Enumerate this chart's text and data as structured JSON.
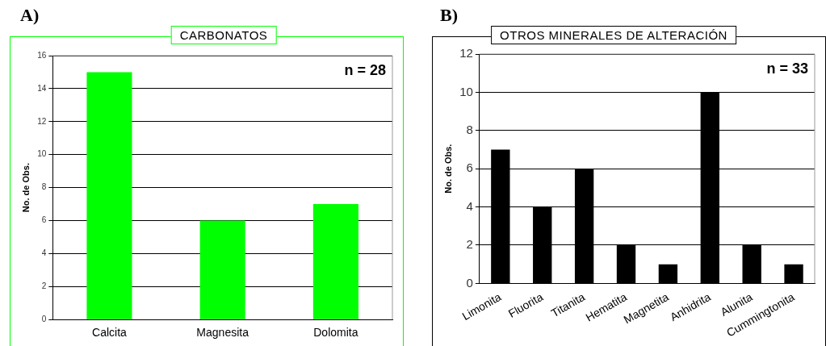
{
  "chart_data": [
    {
      "type": "bar",
      "title": "CARBONATOS",
      "ylabel": "No. de Obs.",
      "categories": [
        "Calcita",
        "Magnesita",
        "Dolomita"
      ],
      "values": [
        15,
        6,
        7
      ],
      "color": "#00ff00",
      "ylim": [
        0,
        16
      ],
      "yticks": [
        0,
        2,
        4,
        6,
        8,
        10,
        12,
        14,
        16
      ],
      "grid": "y",
      "annotations": [
        "A)",
        "n = 28"
      ]
    },
    {
      "type": "bar",
      "title": "OTROS MINERALES DE ALTERACIÓN",
      "ylabel": "No. de Obs.",
      "categories": [
        "Limonita",
        "Fluorita",
        "Titanita",
        "Hematita",
        "Magnetita",
        "Anhidrita",
        "Alunita",
        "Cummingtonita"
      ],
      "values": [
        7,
        4,
        6,
        2,
        1,
        10,
        2,
        1
      ],
      "color": "#000000",
      "ylim": [
        0,
        12
      ],
      "yticks": [
        0,
        2,
        4,
        6,
        8,
        10,
        12
      ],
      "grid": "y",
      "annotations": [
        "B)",
        "n = 33"
      ]
    }
  ]
}
